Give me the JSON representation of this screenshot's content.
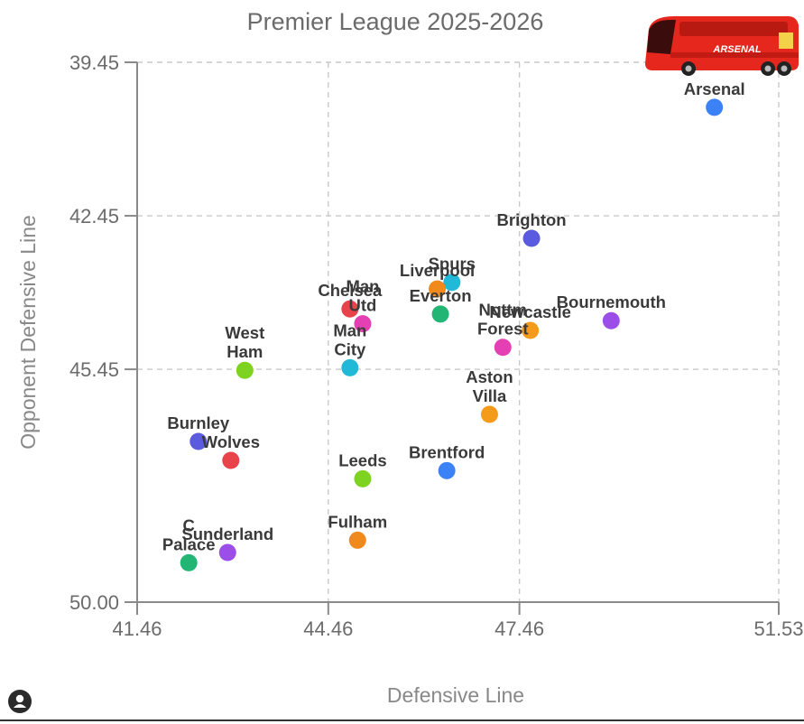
{
  "chart_data": {
    "type": "scatter",
    "title": "Premier League 2025-2026",
    "xlabel": "Defensive Line",
    "ylabel": "Opponent Defensive Line",
    "xlim": [
      41.46,
      51.53
    ],
    "ylim": [
      39.45,
      50.0
    ],
    "y_inverted": true,
    "xticks": [
      "41.46",
      "44.46",
      "47.46",
      "51.53"
    ],
    "yticks": [
      "39.45",
      "42.45",
      "45.45",
      "50.00"
    ],
    "xtick_values": [
      41.46,
      44.46,
      47.46,
      51.53
    ],
    "ytick_values": [
      39.45,
      42.45,
      45.45,
      50.0
    ],
    "grid": true,
    "points": [
      {
        "team": "Arsenal",
        "label": [
          "Arsenal"
        ],
        "x": 50.52,
        "y": 40.33,
        "color": "#3b82f6"
      },
      {
        "team": "Brighton",
        "label": [
          "Brighton"
        ],
        "x": 47.65,
        "y": 42.89,
        "color": "#5b5be0"
      },
      {
        "team": "Spurs",
        "label": [
          "Spurs"
        ],
        "x": 46.4,
        "y": 43.75,
        "color": "#22b8d8"
      },
      {
        "team": "Liverpool",
        "label": [
          "Liverpool"
        ],
        "x": 46.17,
        "y": 43.88,
        "color": "#f08a1c"
      },
      {
        "team": "Chelsea",
        "label": [
          "Chelsea"
        ],
        "x": 44.8,
        "y": 44.27,
        "color": "#e8424a"
      },
      {
        "team": "Man Utd",
        "label": [
          "Man",
          "Utd"
        ],
        "x": 45.0,
        "y": 44.56,
        "color": "#e43fb3"
      },
      {
        "team": "Everton",
        "label": [
          "Everton"
        ],
        "x": 46.22,
        "y": 44.37,
        "color": "#22b573"
      },
      {
        "team": "Newcastle",
        "label": [
          "Newcastle"
        ],
        "x": 47.63,
        "y": 44.69,
        "color": "#f59b1c"
      },
      {
        "team": "Nottm Forest",
        "label": [
          "Nottm",
          "Forest"
        ],
        "x": 47.2,
        "y": 45.02,
        "color": "#e43fb3"
      },
      {
        "team": "Bournemouth",
        "label": [
          "Bournemouth"
        ],
        "x": 48.9,
        "y": 44.5,
        "color": "#9b4fe8"
      },
      {
        "team": "Man City",
        "label": [
          "Man",
          "City"
        ],
        "x": 44.8,
        "y": 45.42,
        "color": "#22b8d8"
      },
      {
        "team": "West Ham",
        "label": [
          "West",
          "Ham"
        ],
        "x": 43.15,
        "y": 45.47,
        "color": "#7ed321"
      },
      {
        "team": "Aston Villa",
        "label": [
          "Aston",
          "Villa"
        ],
        "x": 46.99,
        "y": 46.33,
        "color": "#f59b1c"
      },
      {
        "team": "Burnley",
        "label": [
          "Burnley"
        ],
        "x": 42.42,
        "y": 46.86,
        "color": "#5b5be0"
      },
      {
        "team": "Wolves",
        "label": [
          "Wolves"
        ],
        "x": 42.93,
        "y": 47.23,
        "color": "#e8424a"
      },
      {
        "team": "Leeds",
        "label": [
          "Leeds"
        ],
        "x": 45.0,
        "y": 47.59,
        "color": "#7ed321"
      },
      {
        "team": "Brentford",
        "label": [
          "Brentford"
        ],
        "x": 46.32,
        "y": 47.43,
        "color": "#3b82f6"
      },
      {
        "team": "Fulham",
        "label": [
          "Fulham"
        ],
        "x": 44.92,
        "y": 48.79,
        "color": "#f08a1c"
      },
      {
        "team": "Sunderland",
        "label": [
          "Sunderland"
        ],
        "x": 42.88,
        "y": 49.03,
        "color": "#9b4fe8"
      },
      {
        "team": "C Palace",
        "label": [
          "C",
          "Palace"
        ],
        "x": 42.27,
        "y": 49.23,
        "color": "#22b573"
      }
    ]
  },
  "logo": {
    "text": "ARSENAL",
    "description_icon": "arsenal-team-bus-icon"
  }
}
